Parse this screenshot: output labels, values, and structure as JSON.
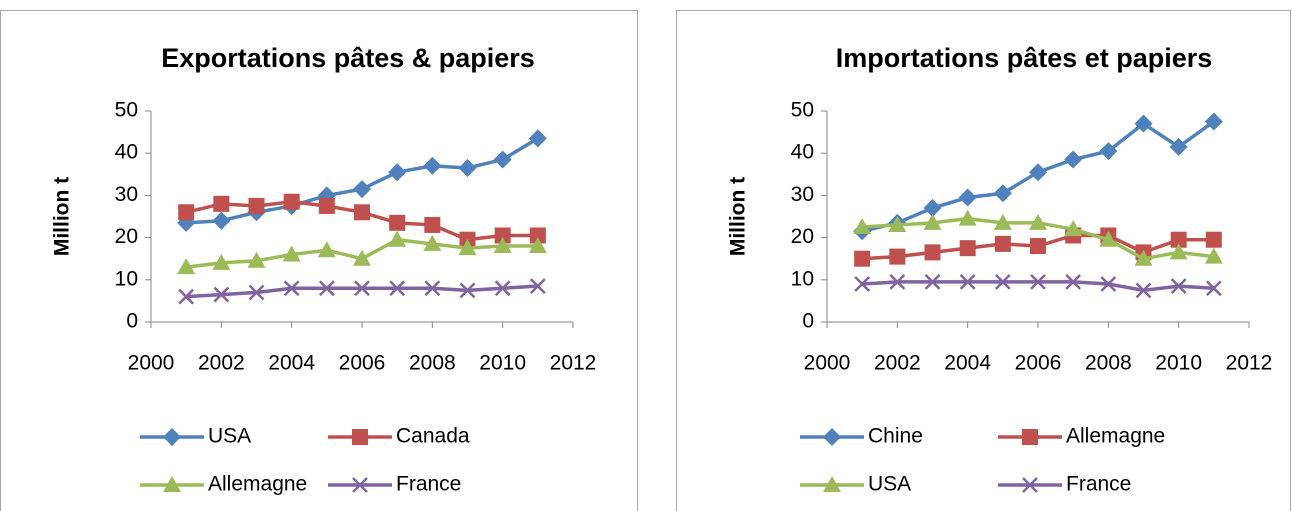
{
  "chart_data": [
    {
      "type": "line",
      "title": "Exportations pâtes & papiers",
      "y_label": "Million t",
      "x": [
        2001,
        2002,
        2003,
        2004,
        2005,
        2006,
        2007,
        2008,
        2009,
        2010,
        2011
      ],
      "xlim": [
        2000,
        2012
      ],
      "xticks": [
        2000,
        2002,
        2004,
        2006,
        2008,
        2010,
        2012
      ],
      "ylim": [
        0,
        50
      ],
      "yticks": [
        0,
        10,
        20,
        30,
        40,
        50
      ],
      "grid": false,
      "legend": "bottom",
      "series": [
        {
          "name": "USA",
          "color": "#4f81bd",
          "marker": "diamond",
          "values": [
            23.5,
            24,
            26,
            27.5,
            30,
            31.5,
            35.5,
            37,
            36.5,
            38.5,
            43.5
          ]
        },
        {
          "name": "Canada",
          "color": "#c0504d",
          "marker": "square",
          "values": [
            26,
            28,
            27.5,
            28.5,
            27.5,
            26,
            23.5,
            23,
            19.5,
            20.5,
            20.5
          ]
        },
        {
          "name": "Allemagne",
          "color": "#9bbb59",
          "marker": "triangle",
          "values": [
            13,
            14,
            14.5,
            16,
            17,
            15,
            19.5,
            18.5,
            17.5,
            18,
            18
          ]
        },
        {
          "name": "France",
          "color": "#8064a2",
          "marker": "x",
          "values": [
            6,
            6.5,
            7,
            8,
            8,
            8,
            8,
            8,
            7.5,
            8,
            8.5
          ]
        }
      ]
    },
    {
      "type": "line",
      "title": "Importations pâtes et papiers",
      "y_label": "Million t",
      "x": [
        2001,
        2002,
        2003,
        2004,
        2005,
        2006,
        2007,
        2008,
        2009,
        2010,
        2011
      ],
      "xlim": [
        2000,
        2012
      ],
      "xticks": [
        2000,
        2002,
        2004,
        2006,
        2008,
        2010,
        2012
      ],
      "ylim": [
        0,
        50
      ],
      "yticks": [
        0,
        10,
        20,
        30,
        40,
        50
      ],
      "grid": false,
      "legend": "bottom",
      "series": [
        {
          "name": "Chine",
          "color": "#4f81bd",
          "marker": "diamond",
          "values": [
            21.5,
            23.5,
            27,
            29.5,
            30.5,
            35.5,
            38.5,
            40.5,
            47,
            41.5,
            47.5
          ]
        },
        {
          "name": "Allemagne",
          "color": "#c0504d",
          "marker": "square",
          "values": [
            15,
            15.5,
            16.5,
            17.5,
            18.5,
            18,
            20.5,
            20.5,
            16.5,
            19.5,
            19.5
          ]
        },
        {
          "name": "USA",
          "color": "#9bbb59",
          "marker": "triangle",
          "values": [
            22.5,
            23,
            23.5,
            24.5,
            23.5,
            23.5,
            22,
            19.5,
            15,
            16.5,
            15.5
          ]
        },
        {
          "name": "France",
          "color": "#8064a2",
          "marker": "x",
          "values": [
            9,
            9.5,
            9.5,
            9.5,
            9.5,
            9.5,
            9.5,
            9,
            7.5,
            8.5,
            8
          ]
        }
      ]
    }
  ]
}
